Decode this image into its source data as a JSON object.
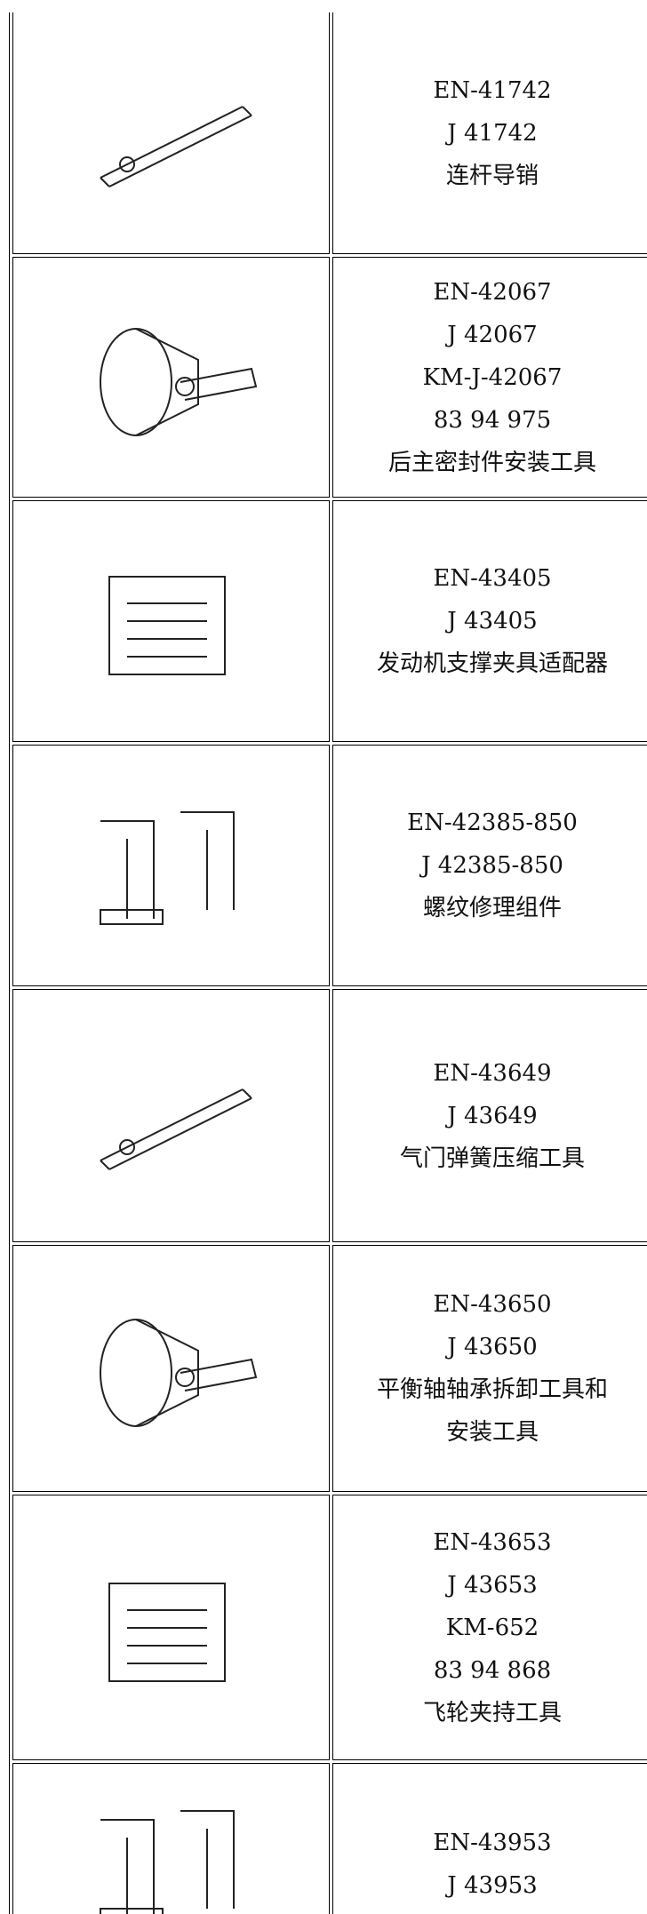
{
  "table": {
    "rows": [
      {
        "lines": [
          "EN-41742",
          "J 41742",
          "连杆导销"
        ]
      },
      {
        "lines": [
          "EN-42067",
          "J 42067",
          "KM-J-42067",
          "83 94 975",
          "后主密封件安装工具"
        ]
      },
      {
        "lines": [
          "EN-43405",
          "J 43405",
          "发动机支撑夹具适配器"
        ]
      },
      {
        "lines": [
          "EN-42385-850",
          "J 42385-850",
          "螺纹修理组件"
        ]
      },
      {
        "lines": [
          "EN-43649",
          "J 43649",
          "气门弹簧压缩工具"
        ]
      },
      {
        "lines": [
          "EN-43650",
          "J 43650",
          "平衡轴轴承拆卸工具和",
          "安装工具"
        ]
      },
      {
        "lines": [
          "EN-43653",
          "J 43653",
          "KM-652",
          "83 94 868",
          "飞轮夹持工具"
        ]
      },
      {
        "lines": [
          "EN-43953",
          "J 43953"
        ]
      }
    ]
  }
}
